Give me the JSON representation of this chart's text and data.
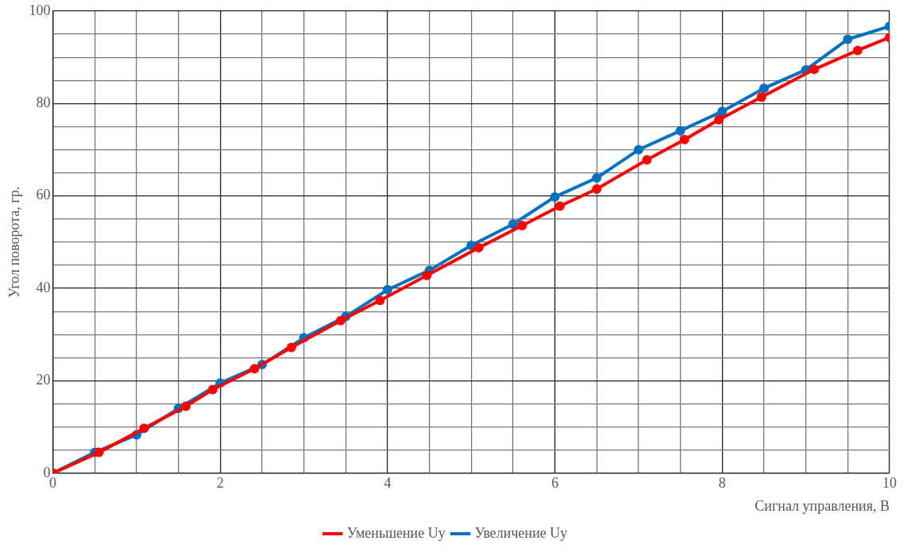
{
  "chart_data": {
    "type": "line",
    "xlabel": "Сигнал управления, В",
    "ylabel": "Угол поворота, гр.",
    "xlim": [
      0,
      10
    ],
    "ylim": [
      0,
      100
    ],
    "xticks": [
      0,
      {
        "value": 0.5,
        "label": null
      },
      2,
      {
        "value": 1,
        "label": null
      },
      {
        "value": 1.5,
        "label": null
      },
      {
        "value": 2.5,
        "label": null
      },
      {
        "value": 3,
        "label": null
      },
      {
        "value": 3.5,
        "label": null
      },
      4,
      {
        "value": 4.5,
        "label": null
      },
      {
        "value": 5,
        "label": null
      },
      {
        "value": 5.5,
        "label": null
      },
      6,
      {
        "value": 6.5,
        "label": null
      },
      {
        "value": 7,
        "label": null
      },
      {
        "value": 7.5,
        "label": null
      },
      8,
      {
        "value": 8.5,
        "label": null
      },
      {
        "value": 9,
        "label": null
      },
      {
        "value": 9.5,
        "label": null
      },
      10
    ],
    "yticks": [
      0,
      {
        "value": 5,
        "label": null
      },
      {
        "value": 10,
        "label": null
      },
      {
        "value": 15,
        "label": null
      },
      20,
      {
        "value": 25,
        "label": null
      },
      {
        "value": 30,
        "label": null
      },
      {
        "value": 35,
        "label": null
      },
      40,
      {
        "value": 45,
        "label": null
      },
      {
        "value": 50,
        "label": null
      },
      {
        "value": 55,
        "label": null
      },
      60,
      {
        "value": 65,
        "label": null
      },
      {
        "value": 70,
        "label": null
      },
      {
        "value": 75,
        "label": null
      },
      80,
      {
        "value": 85,
        "label": null
      },
      {
        "value": 90,
        "label": null
      },
      {
        "value": 95,
        "label": null
      },
      100
    ],
    "grid": true,
    "legend": "bottom",
    "marker": "circle",
    "line_style": "solid",
    "series": [
      {
        "name": "Увеличение Uy",
        "color": "#0070c0",
        "x": [
          0,
          0.5,
          1,
          1.5,
          2,
          2.5,
          3,
          3.5,
          4,
          4.5,
          5,
          5.5,
          6,
          6.5,
          7,
          7.5,
          8,
          8.5,
          9,
          9.5,
          10
        ],
        "values": [
          0,
          4.5,
          8.3,
          14,
          19.5,
          23.5,
          29.3,
          33.9,
          39.7,
          43.9,
          49.3,
          53.9,
          59.8,
          63.9,
          70,
          74.1,
          78.3,
          83.3,
          87.3,
          93.9,
          96.7
        ]
      },
      {
        "name": "Уменьшение Uy",
        "color": "#ff0000",
        "x": [
          0,
          0.55,
          1.09,
          1.59,
          1.91,
          2.41,
          2.85,
          3.44,
          3.91,
          4.47,
          5.09,
          5.61,
          6.06,
          6.5,
          7.1,
          7.55,
          7.96,
          8.47,
          9.1,
          9.62,
          10
        ],
        "values": [
          0,
          4.5,
          9.7,
          14.5,
          18.1,
          22.6,
          27.2,
          33,
          37.4,
          42.8,
          48.8,
          53.6,
          57.8,
          61.5,
          67.8,
          72.2,
          76.5,
          81.4,
          87.4,
          91.5,
          94.3
        ]
      }
    ]
  }
}
